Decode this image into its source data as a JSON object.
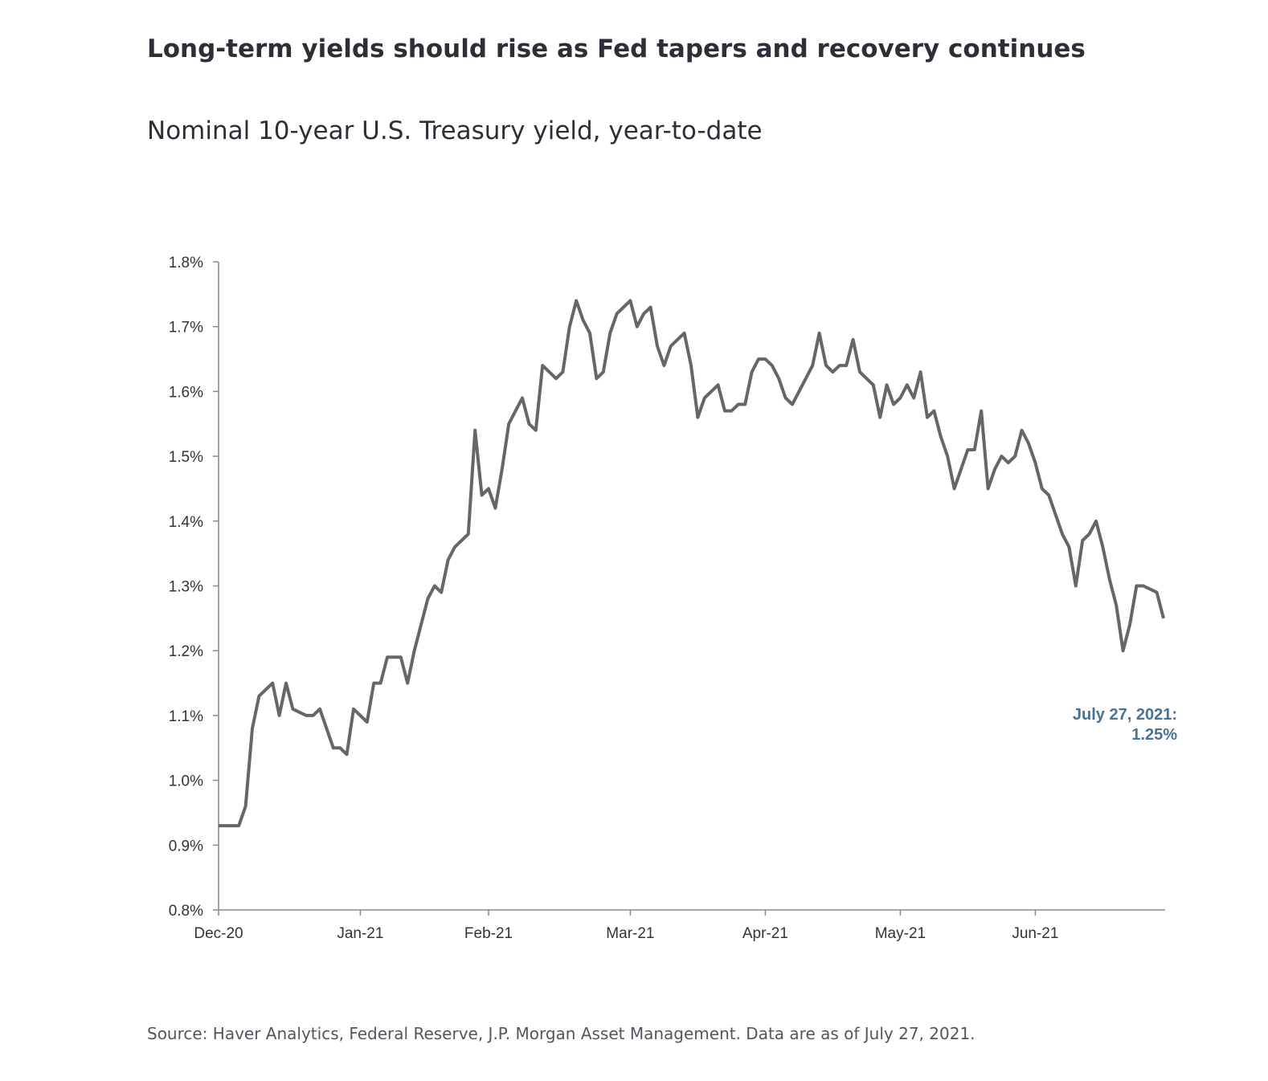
{
  "chart_data": {
    "type": "line",
    "title": "Long-term yields should rise as Fed tapers and recovery continues",
    "subtitle": "Nominal 10-year U.S. Treasury yield, year-to-date",
    "source": "Source: Haver Analytics, Federal Reserve, J.P. Morgan Asset Management. Data are as of July 27, 2021.",
    "annotation": [
      "July 27, 2021:",
      "1.25%"
    ],
    "categories": [
      "Dec-20",
      null,
      null,
      null,
      null,
      null,
      null,
      null,
      null,
      null,
      null,
      null,
      null,
      null,
      null,
      null,
      null,
      null,
      null,
      null,
      null,
      "Jan-21",
      null,
      null,
      null,
      null,
      null,
      null,
      null,
      null,
      null,
      null,
      null,
      null,
      null,
      null,
      null,
      null,
      null,
      null,
      "Feb-21",
      null,
      null,
      null,
      null,
      null,
      null,
      null,
      null,
      null,
      null,
      null,
      null,
      null,
      null,
      null,
      null,
      null,
      null,
      null,
      null,
      "Mar-21",
      null,
      null,
      null,
      null,
      null,
      null,
      null,
      null,
      null,
      null,
      null,
      null,
      null,
      null,
      null,
      null,
      null,
      null,
      null,
      "Apr-21",
      null,
      null,
      null,
      null,
      null,
      null,
      null,
      null,
      null,
      null,
      null,
      null,
      null,
      null,
      null,
      null,
      null,
      null,
      null,
      "May-21",
      null,
      null,
      null,
      null,
      null,
      null,
      null,
      null,
      null,
      null,
      null,
      null,
      null,
      null,
      null,
      null,
      null,
      null,
      null,
      "Jun-21",
      null,
      null,
      null,
      null,
      null,
      null,
      null,
      null,
      null,
      null,
      null,
      null,
      null,
      null,
      null,
      null,
      null,
      null,
      null
    ],
    "series": [
      {
        "color": "#666666",
        "values": [
          0.93,
          0.93,
          0.93,
          0.93,
          0.96,
          1.08,
          1.13,
          1.14,
          1.15,
          1.1,
          1.15,
          1.11,
          1.105,
          1.1,
          1.1,
          1.11,
          1.08,
          1.05,
          1.05,
          1.04,
          1.11,
          1.1,
          1.09,
          1.15,
          1.15,
          1.19,
          1.19,
          1.19,
          1.15,
          1.2,
          1.24,
          1.28,
          1.3,
          1.29,
          1.34,
          1.36,
          1.37,
          1.38,
          1.54,
          1.44,
          1.45,
          1.42,
          1.48,
          1.55,
          1.57,
          1.59,
          1.55,
          1.54,
          1.64,
          1.63,
          1.62,
          1.63,
          1.7,
          1.74,
          1.71,
          1.69,
          1.62,
          1.63,
          1.69,
          1.72,
          1.73,
          1.74,
          1.7,
          1.72,
          1.73,
          1.67,
          1.64,
          1.67,
          1.68,
          1.69,
          1.64,
          1.56,
          1.59,
          1.6,
          1.61,
          1.57,
          1.57,
          1.58,
          1.58,
          1.63,
          1.65,
          1.65,
          1.64,
          1.62,
          1.59,
          1.58,
          1.6,
          1.62,
          1.64,
          1.69,
          1.64,
          1.63,
          1.64,
          1.64,
          1.68,
          1.63,
          1.62,
          1.61,
          1.56,
          1.61,
          1.58,
          1.59,
          1.61,
          1.59,
          1.63,
          1.56,
          1.57,
          1.53,
          1.5,
          1.45,
          1.48,
          1.51,
          1.51,
          1.57,
          1.45,
          1.48,
          1.5,
          1.49,
          1.5,
          1.54,
          1.52,
          1.49,
          1.45,
          1.44,
          1.41,
          1.38,
          1.36,
          1.3,
          1.37,
          1.38,
          1.4,
          1.36,
          1.31,
          1.27,
          1.2,
          1.24,
          1.3,
          1.3,
          1.295,
          1.29,
          1.25
        ]
      }
    ],
    "ylim": [
      0.8,
      1.8
    ],
    "yticks": [
      {
        "value": 0.8,
        "label": "0.8%"
      },
      {
        "value": 0.9,
        "label": "0.9%"
      },
      {
        "value": 1.0,
        "label": "1.0%"
      },
      {
        "value": 1.1,
        "label": "1.1%"
      },
      {
        "value": 1.2,
        "label": "1.2%"
      },
      {
        "value": 1.3,
        "label": "1.3%"
      },
      {
        "value": 1.4,
        "label": "1.4%"
      },
      {
        "value": 1.5,
        "label": "1.5%"
      },
      {
        "value": 1.6,
        "label": "1.6%"
      },
      {
        "value": 1.7,
        "label": "1.7%"
      },
      {
        "value": 1.8,
        "label": "1.8%"
      }
    ],
    "annotation_color": "#4a7196",
    "grid": false
  }
}
